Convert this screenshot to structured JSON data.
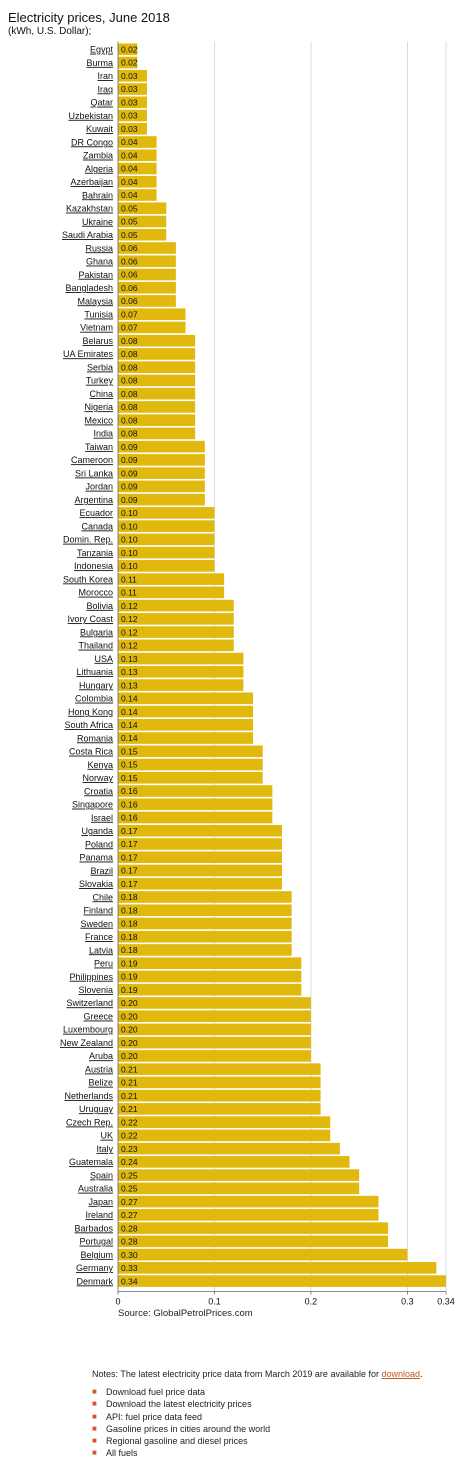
{
  "header": {
    "title": "Electricity prices, June 2018",
    "subtitle": "(kWh, U.S. Dollar);"
  },
  "colors": {
    "bar": "#e0b80e",
    "grid": "#cccccc",
    "axis": "#666666",
    "bullet": "#d9542b",
    "link": "#c05a20"
  },
  "chart_data": {
    "type": "bar",
    "orientation": "horizontal",
    "categories": [
      "Egypt",
      "Burma",
      "Iran",
      "Iraq",
      "Qatar",
      "Uzbekistan",
      "Kuwait",
      "DR Congo",
      "Zambia",
      "Algeria",
      "Azerbaijan",
      "Bahrain",
      "Kazakhstan",
      "Ukraine",
      "Saudi Arabia",
      "Russia",
      "Ghana",
      "Pakistan",
      "Bangladesh",
      "Malaysia",
      "Tunisia",
      "Vietnam",
      "Belarus",
      "UA Emirates",
      "Serbia",
      "Turkey",
      "China",
      "Nigeria",
      "Mexico",
      "India",
      "Taiwan",
      "Cameroon",
      "Sri Lanka",
      "Jordan",
      "Argentina",
      "Ecuador",
      "Canada",
      "Domin. Rep.",
      "Tanzania",
      "Indonesia",
      "South Korea",
      "Morocco",
      "Bolivia",
      "Ivory Coast",
      "Bulgaria",
      "Thailand",
      "USA",
      "Lithuania",
      "Hungary",
      "Colombia",
      "Hong Kong",
      "South Africa",
      "Romania",
      "Costa Rica",
      "Kenya",
      "Norway",
      "Croatia",
      "Singapore",
      "Israel",
      "Uganda",
      "Poland",
      "Panama",
      "Brazil",
      "Slovakia",
      "Chile",
      "Finland",
      "Sweden",
      "France",
      "Latvia",
      "Peru",
      "Philippines",
      "Slovenia",
      "Switzerland",
      "Greece",
      "Luxembourg",
      "New Zealand",
      "Aruba",
      "Austria",
      "Belize",
      "Netherlands",
      "Uruguay",
      "Czech Rep.",
      "UK",
      "Italy",
      "Guatemala",
      "Spain",
      "Australia",
      "Japan",
      "Ireland",
      "Barbados",
      "Portugal",
      "Belgium",
      "Germany",
      "Denmark"
    ],
    "values": [
      0.02,
      0.02,
      0.03,
      0.03,
      0.03,
      0.03,
      0.03,
      0.04,
      0.04,
      0.04,
      0.04,
      0.04,
      0.05,
      0.05,
      0.05,
      0.06,
      0.06,
      0.06,
      0.06,
      0.06,
      0.07,
      0.07,
      0.08,
      0.08,
      0.08,
      0.08,
      0.08,
      0.08,
      0.08,
      0.08,
      0.09,
      0.09,
      0.09,
      0.09,
      0.09,
      0.1,
      0.1,
      0.1,
      0.1,
      0.1,
      0.11,
      0.11,
      0.12,
      0.12,
      0.12,
      0.12,
      0.13,
      0.13,
      0.13,
      0.14,
      0.14,
      0.14,
      0.14,
      0.15,
      0.15,
      0.15,
      0.16,
      0.16,
      0.16,
      0.17,
      0.17,
      0.17,
      0.17,
      0.17,
      0.18,
      0.18,
      0.18,
      0.18,
      0.18,
      0.19,
      0.19,
      0.19,
      0.2,
      0.2,
      0.2,
      0.2,
      0.2,
      0.21,
      0.21,
      0.21,
      0.21,
      0.22,
      0.22,
      0.23,
      0.24,
      0.25,
      0.25,
      0.27,
      0.27,
      0.28,
      0.28,
      0.3,
      0.33,
      0.34
    ],
    "value_labels": [
      "0.02",
      "0.02",
      "0.03",
      "0.03",
      "0.03",
      "0.03",
      "0.03",
      "0.04",
      "0.04",
      "0.04",
      "0.04",
      "0.04",
      "0.05",
      "0.05",
      "0.05",
      "0.06",
      "0.06",
      "0.06",
      "0.06",
      "0.06",
      "0.07",
      "0.07",
      "0.08",
      "0.08",
      "0.08",
      "0.08",
      "0.08",
      "0.08",
      "0.08",
      "0.08",
      "0.09",
      "0.09",
      "0.09",
      "0.09",
      "0.09",
      "0.10",
      "0.10",
      "0.10",
      "0.10",
      "0.10",
      "0.11",
      "0.11",
      "0.12",
      "0.12",
      "0.12",
      "0.12",
      "0.13",
      "0.13",
      "0.13",
      "0.14",
      "0.14",
      "0.14",
      "0.14",
      "0.15",
      "0.15",
      "0.15",
      "0.16",
      "0.16",
      "0.16",
      "0.17",
      "0.17",
      "0.17",
      "0.17",
      "0.17",
      "0.18",
      "0.18",
      "0.18",
      "0.18",
      "0.18",
      "0.19",
      "0.19",
      "0.19",
      "0.20",
      "0.20",
      "0.20",
      "0.20",
      "0.20",
      "0.21",
      "0.21",
      "0.21",
      "0.21",
      "0.22",
      "0.22",
      "0.23",
      "0.24",
      "0.25",
      "0.25",
      "0.27",
      "0.27",
      "0.28",
      "0.28",
      "0.30",
      "0.33",
      "0.34"
    ],
    "xlim": [
      0,
      0.34
    ],
    "x_ticks": [
      0,
      0.1,
      0.2,
      0.3,
      0.34
    ],
    "x_tick_labels": [
      "0",
      "0.1",
      "0.2",
      "0.3",
      "0.34"
    ],
    "grid": true,
    "title": "Electricity prices, June 2018",
    "subtitle": "(kWh, U.S. Dollar);",
    "source": "Source: GlobalPetrolPrices.com"
  },
  "notes": {
    "text": "Notes: The latest electricity price data from March 2019 are available for",
    "link_label": "download",
    "end": "."
  },
  "links": [
    {
      "label": "Download fuel price data",
      "icon": "bullet-icon"
    },
    {
      "label": "Download the latest electricity prices",
      "icon": "bullet-icon"
    },
    {
      "label": "API: fuel price data feed",
      "icon": "bullet-icon"
    },
    {
      "label": "Gasoline prices in cities around the world",
      "icon": "bullet-icon"
    },
    {
      "label": "Regional gasoline and diesel prices",
      "icon": "bullet-icon"
    },
    {
      "label": "All fuels",
      "icon": "bullet-icon"
    }
  ]
}
